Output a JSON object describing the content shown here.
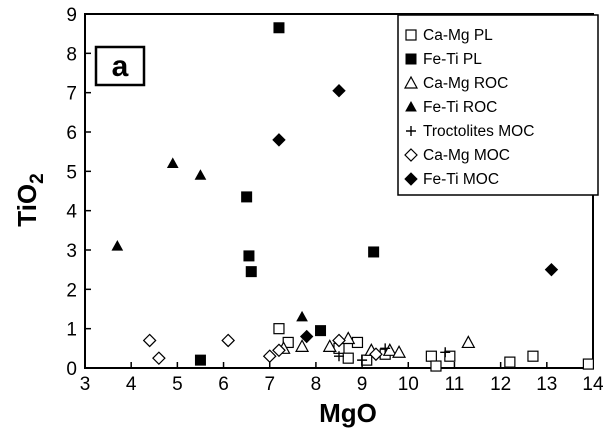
{
  "chart_data": {
    "type": "scatter",
    "panel_label": "a",
    "title": "",
    "xlabel": "MgO",
    "ylabel_main": "TiO",
    "ylabel_sub": "2",
    "xlim": [
      3,
      14
    ],
    "ylim": [
      0,
      9
    ],
    "x_ticks": [
      "3",
      "4",
      "5",
      "6",
      "7",
      "8",
      "9",
      "10",
      "11",
      "12",
      "13",
      "14"
    ],
    "y_ticks": [
      "0",
      "1",
      "2",
      "3",
      "4",
      "5",
      "6",
      "7",
      "8",
      "9"
    ],
    "grid": false,
    "legend_position": "top-right",
    "series": [
      {
        "name": "Ca-Mg PL",
        "marker": "square-open",
        "points": [
          [
            7.2,
            1.0
          ],
          [
            7.4,
            0.65
          ],
          [
            8.5,
            0.5
          ],
          [
            8.9,
            0.65
          ],
          [
            9.5,
            0.35
          ],
          [
            10.5,
            0.3
          ],
          [
            10.9,
            0.3
          ],
          [
            12.2,
            0.15
          ],
          [
            12.7,
            0.3
          ],
          [
            13.9,
            0.1
          ],
          [
            9.1,
            0.2
          ],
          [
            8.7,
            0.25
          ],
          [
            10.6,
            0.05
          ]
        ]
      },
      {
        "name": "Fe-Ti PL",
        "marker": "square-filled",
        "points": [
          [
            5.5,
            0.2
          ],
          [
            6.5,
            4.35
          ],
          [
            6.55,
            2.85
          ],
          [
            6.6,
            2.45
          ],
          [
            7.2,
            8.65
          ],
          [
            8.1,
            0.95
          ],
          [
            9.25,
            2.95
          ]
        ]
      },
      {
        "name": "Ca-Mg ROC",
        "marker": "triangle-open",
        "points": [
          [
            7.3,
            0.5
          ],
          [
            7.7,
            0.55
          ],
          [
            8.3,
            0.55
          ],
          [
            8.7,
            0.75
          ],
          [
            9.2,
            0.45
          ],
          [
            9.6,
            0.45
          ],
          [
            9.8,
            0.4
          ],
          [
            11.3,
            0.65
          ]
        ]
      },
      {
        "name": "Fe-Ti ROC",
        "marker": "triangle-filled",
        "points": [
          [
            3.7,
            3.1
          ],
          [
            4.9,
            5.2
          ],
          [
            5.5,
            4.9
          ],
          [
            7.7,
            1.3
          ]
        ]
      },
      {
        "name": "Troctolites MOC",
        "marker": "plus",
        "points": [
          [
            8.5,
            0.3
          ],
          [
            9.0,
            0.2
          ],
          [
            9.5,
            0.5
          ],
          [
            10.8,
            0.4
          ]
        ]
      },
      {
        "name": "Ca-Mg MOC",
        "marker": "diamond-open",
        "points": [
          [
            4.4,
            0.7
          ],
          [
            4.6,
            0.25
          ],
          [
            6.1,
            0.7
          ],
          [
            7.0,
            0.3
          ],
          [
            7.2,
            0.45
          ],
          [
            8.5,
            0.7
          ],
          [
            9.3,
            0.35
          ]
        ]
      },
      {
        "name": "Fe-Ti MOC",
        "marker": "diamond-filled",
        "points": [
          [
            7.2,
            5.8
          ],
          [
            7.8,
            0.8
          ],
          [
            8.5,
            7.05
          ],
          [
            13.1,
            2.5
          ]
        ]
      }
    ]
  }
}
